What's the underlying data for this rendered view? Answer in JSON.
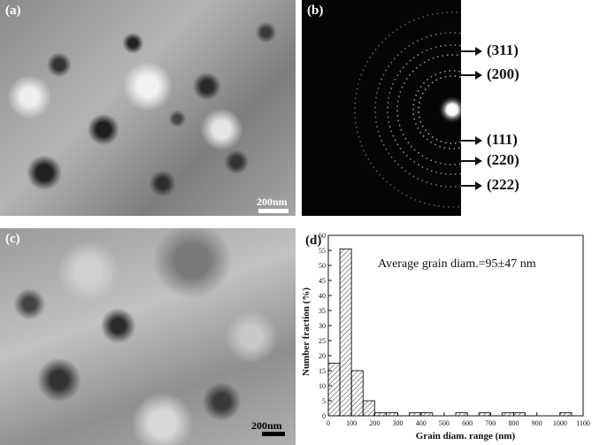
{
  "panels": {
    "a": {
      "label": "(a)",
      "scale": "200nm"
    },
    "b": {
      "label": "(b)",
      "rings": [
        "(311)",
        "(200)",
        "(111)",
        "(220)",
        "(222)"
      ]
    },
    "c": {
      "label": "(c)",
      "scale": "200nm"
    },
    "d": {
      "label": "(d)"
    }
  },
  "chart_data": {
    "type": "bar",
    "title": "",
    "annotation": "Average grain diam.=95±47 nm",
    "xlabel": "Grain diam. range (nm)",
    "ylabel": "Number fraction (%)",
    "xlim": [
      0,
      1100
    ],
    "ylim": [
      0,
      60
    ],
    "xticks": [
      0,
      100,
      200,
      300,
      400,
      500,
      600,
      700,
      800,
      900,
      1000,
      1100
    ],
    "yticks": [
      0,
      5,
      10,
      15,
      20,
      25,
      30,
      35,
      40,
      45,
      50,
      55,
      60
    ],
    "bin_width": 50,
    "bins": [
      {
        "start": 0,
        "value": 17.5
      },
      {
        "start": 50,
        "value": 55.5
      },
      {
        "start": 100,
        "value": 15
      },
      {
        "start": 150,
        "value": 5
      },
      {
        "start": 200,
        "value": 1
      },
      {
        "start": 250,
        "value": 1
      },
      {
        "start": 350,
        "value": 1
      },
      {
        "start": 400,
        "value": 1
      },
      {
        "start": 550,
        "value": 1
      },
      {
        "start": 650,
        "value": 1
      },
      {
        "start": 750,
        "value": 1
      },
      {
        "start": 800,
        "value": 1
      },
      {
        "start": 1000,
        "value": 1
      }
    ],
    "grid": false,
    "fill_pattern": "diagonal-hatch"
  }
}
